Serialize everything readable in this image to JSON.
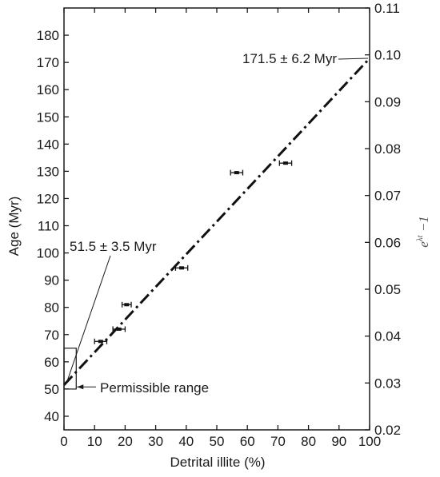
{
  "chart_data": {
    "type": "scatter",
    "xlabel": "Detrital illite (%)",
    "ylabel": "Age (Myr)",
    "ylabel_right_parts": [
      "e",
      "λt",
      " −1"
    ],
    "xlim": [
      0,
      100
    ],
    "ylim": [
      35,
      190
    ],
    "ylim_right": [
      0.02,
      0.11
    ],
    "x_ticks": [
      0,
      10,
      20,
      30,
      40,
      50,
      60,
      70,
      80,
      90,
      100
    ],
    "y_ticks": [
      40,
      50,
      60,
      70,
      80,
      90,
      100,
      110,
      120,
      130,
      140,
      150,
      160,
      170,
      180
    ],
    "y_ticks_right": [
      "0.02",
      "0.03",
      "0.04",
      "0.05",
      "0.06",
      "0.07",
      "0.08",
      "0.09",
      "0.10",
      "0.11"
    ],
    "grid": false,
    "points": [
      {
        "x": 12,
        "y": 67.5,
        "xerr": 2
      },
      {
        "x": 18,
        "y": 72,
        "xerr": 2
      },
      {
        "x": 20.5,
        "y": 81,
        "xerr": 1.5
      },
      {
        "x": 38.5,
        "y": 94.5,
        "xerr": 2
      },
      {
        "x": 56.5,
        "y": 129.5,
        "xerr": 2
      },
      {
        "x": 72.5,
        "y": 133,
        "xerr": 2
      }
    ],
    "fit_line": {
      "x": [
        0,
        100
      ],
      "y": [
        51.5,
        171.5
      ],
      "style": "dash-dot"
    },
    "permissible_box": {
      "x": [
        0,
        4
      ],
      "y": [
        50,
        65
      ]
    },
    "annotations": [
      {
        "text": "171.5 ± 6.2 Myr",
        "x": 100,
        "y": 171.5
      },
      {
        "text": "51.5 ± 3.5 Myr",
        "x": 0,
        "y": 51.5
      },
      {
        "text": "Permissible range",
        "x": 4,
        "y": 50.5
      }
    ]
  }
}
